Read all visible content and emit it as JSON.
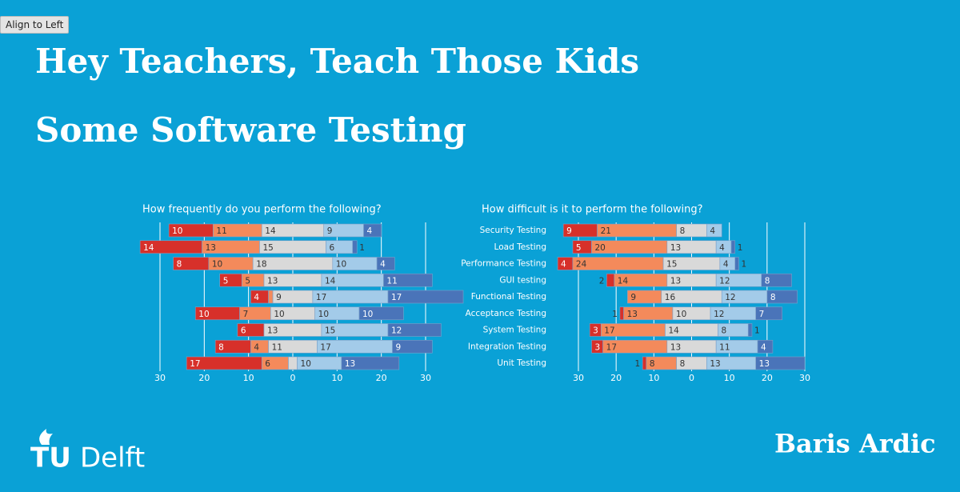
{
  "button": "Align to Left",
  "title_lines": [
    "Hey Teachers, Teach Those Kids",
    "Some Software Testing"
  ],
  "logo": {
    "prefix": "TU",
    "suffix": "Delft"
  },
  "author": "Baris Ardic",
  "chart_data": [
    {
      "type": "diverging-bar",
      "title": "How frequently do you perform the following?",
      "xlim": [
        -30,
        30
      ],
      "xticks": [
        {
          "value": -30,
          "label": "30"
        },
        {
          "value": -20,
          "label": "20"
        },
        {
          "value": -10,
          "label": "10"
        },
        0,
        10,
        20,
        30
      ],
      "grid": true,
      "neutral_series": 2,
      "series": [
        {
          "color": "#d7302a",
          "values": [
            10,
            14,
            8,
            5,
            4,
            10,
            6,
            8,
            17
          ]
        },
        {
          "color": "#f48a5b",
          "values": [
            11,
            13,
            10,
            5,
            1,
            7,
            0,
            4,
            6
          ]
        },
        {
          "color": "#d9d9d9",
          "values": [
            14,
            15,
            18,
            13,
            9,
            10,
            13,
            11,
            2
          ]
        },
        {
          "color": "#a3cbe9",
          "values": [
            9,
            6,
            10,
            14,
            17,
            10,
            15,
            17,
            10
          ]
        },
        {
          "color": "#4a74b9",
          "values": [
            4,
            1,
            4,
            11,
            17,
            10,
            12,
            9,
            13
          ]
        }
      ]
    },
    {
      "type": "diverging-bar",
      "title": "How difficult is it to perform the following?",
      "categories": [
        "Security Testing",
        "Load Testing",
        "Performance Testing",
        "GUI testing",
        "Functional Testing",
        "Acceptance Testing",
        "System Testing",
        "Integration Testing",
        "Unit Testing"
      ],
      "xlim": [
        -30,
        30
      ],
      "xticks": [
        {
          "value": -30,
          "label": "30"
        },
        {
          "value": -20,
          "label": "20"
        },
        {
          "value": -10,
          "label": "10"
        },
        0,
        10,
        20,
        30
      ],
      "grid": true,
      "neutral_series": 2,
      "series": [
        {
          "color": "#d7302a",
          "values": [
            9,
            5,
            4,
            2,
            0,
            1,
            3,
            3,
            1
          ]
        },
        {
          "color": "#f48a5b",
          "values": [
            21,
            20,
            24,
            14,
            9,
            13,
            17,
            17,
            8
          ]
        },
        {
          "color": "#d9d9d9",
          "values": [
            8,
            13,
            15,
            13,
            16,
            10,
            14,
            13,
            8
          ]
        },
        {
          "color": "#a3cbe9",
          "values": [
            4,
            4,
            4,
            12,
            12,
            12,
            8,
            11,
            13
          ]
        },
        {
          "color": "#4a74b9",
          "values": [
            0,
            1,
            1,
            8,
            8,
            7,
            1,
            4,
            13
          ]
        }
      ]
    }
  ]
}
